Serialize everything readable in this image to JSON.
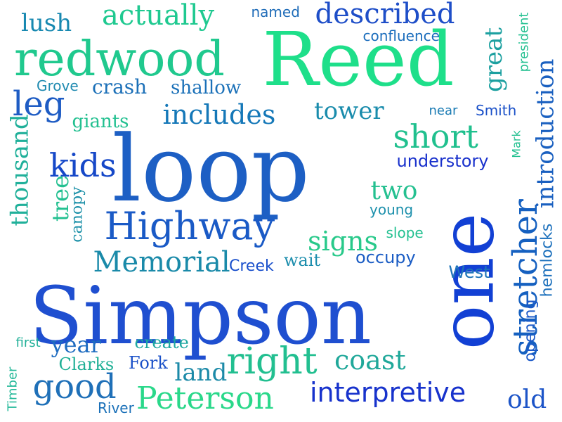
{
  "words": [
    {
      "text": "Simpson",
      "color": "#1f4fd0"
    },
    {
      "text": "loop",
      "color": "#1d5fc4"
    },
    {
      "text": "Reed",
      "color": "#1edf8a"
    },
    {
      "text": "one",
      "color": "#1240d4"
    },
    {
      "text": "redwood",
      "color": "#20c98e"
    },
    {
      "text": "Highway",
      "color": "#1a5ac6"
    },
    {
      "text": "Peterson",
      "color": "#2ad88a"
    },
    {
      "text": "Memorial",
      "color": "#1a8aa9"
    },
    {
      "text": "stretcher",
      "color": "#1560c0"
    },
    {
      "text": "introduction",
      "color": "#1a60c0"
    },
    {
      "text": "right",
      "color": "#22bf90"
    },
    {
      "text": "interpretive",
      "color": "#1732cc"
    },
    {
      "text": "short",
      "color": "#20c08e"
    },
    {
      "text": "described",
      "color": "#1e4ec8"
    },
    {
      "text": "kids",
      "color": "#1648c8"
    },
    {
      "text": "actually",
      "color": "#1fc990"
    },
    {
      "text": "includes",
      "color": "#1578b8"
    },
    {
      "text": "good",
      "color": "#1f70b8"
    },
    {
      "text": "thousand",
      "color": "#20b09a"
    },
    {
      "text": "leg",
      "color": "#1e5cc4"
    },
    {
      "text": "lush",
      "color": "#1788b0"
    },
    {
      "text": "signs",
      "color": "#28c98a"
    },
    {
      "text": "land",
      "color": "#1c8aa8"
    },
    {
      "text": "coast",
      "color": "#20a89a"
    },
    {
      "text": "tower",
      "color": "#1a8cac"
    },
    {
      "text": "great",
      "color": "#1ca0a0"
    },
    {
      "text": "two",
      "color": "#24c090"
    },
    {
      "text": "year",
      "color": "#1e6cc0"
    },
    {
      "text": "old",
      "color": "#1c54c8"
    },
    {
      "text": "tree",
      "color": "#22c090"
    },
    {
      "text": "understory",
      "color": "#1830cc"
    },
    {
      "text": "crash",
      "color": "#1c70b8"
    },
    {
      "text": "shallow",
      "color": "#1a70b8"
    },
    {
      "text": "occupy",
      "color": "#1a5cc4"
    },
    {
      "text": "hemlocks",
      "color": "#1c70bc"
    },
    {
      "text": "giants",
      "color": "#22c090"
    },
    {
      "text": "create",
      "color": "#1ca8a0"
    },
    {
      "text": "canopy",
      "color": "#1c90a8"
    },
    {
      "text": "Creek",
      "color": "#1a50cc"
    },
    {
      "text": "wait",
      "color": "#1a8cac"
    },
    {
      "text": "opening",
      "color": "#1a58c8"
    },
    {
      "text": "West",
      "color": "#1e74b8"
    },
    {
      "text": "Fork",
      "color": "#1a50c8"
    },
    {
      "text": "Clarks",
      "color": "#20b096"
    },
    {
      "text": "named",
      "color": "#1f6cb8"
    },
    {
      "text": "confluence",
      "color": "#1a6cbc"
    },
    {
      "text": "Grove",
      "color": "#1f8ab0"
    },
    {
      "text": "young",
      "color": "#1c90ac"
    },
    {
      "text": "slope",
      "color": "#22c090"
    },
    {
      "text": "near",
      "color": "#1c7cb4"
    },
    {
      "text": "Smith",
      "color": "#1a50c8"
    },
    {
      "text": "Mark",
      "color": "#22c090"
    },
    {
      "text": "president",
      "color": "#22c090"
    },
    {
      "text": "River",
      "color": "#1a70b8"
    },
    {
      "text": "Timber",
      "color": "#22b898"
    },
    {
      "text": "first",
      "color": "#20b098"
    }
  ]
}
